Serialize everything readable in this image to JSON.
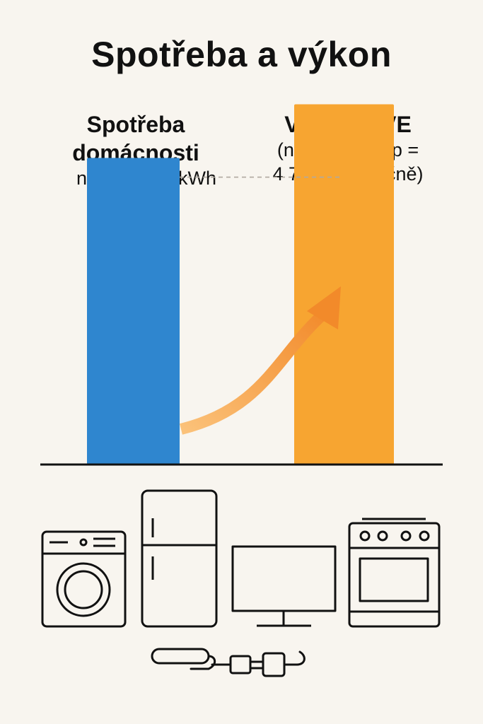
{
  "title": "Spotřeba a výkon",
  "chart_data": {
    "type": "bar",
    "categories": [
      "Spotřeba domácnosti",
      "Výroba FVE"
    ],
    "category_lines": [
      [
        "Spotřeba",
        "domácnosti"
      ],
      [
        "Výroba FVE"
      ]
    ],
    "sublabels": [
      [
        "např. 4 000 kWh"
      ],
      [
        "(např. 4,5 kWp =",
        "4 700 kWh ročně)"
      ]
    ],
    "values": [
      4000,
      4700
    ],
    "unit": "kWh",
    "ylim": [
      0,
      5000
    ],
    "colors": [
      "#2f86cf",
      "#f7a531"
    ],
    "arrow_color": "#f28a2a",
    "reference_line": "dashed",
    "grid": false
  },
  "icons": [
    "washing-machine-icon",
    "fridge-icon",
    "monitor-icon",
    "stove-icon",
    "plug-icon"
  ]
}
